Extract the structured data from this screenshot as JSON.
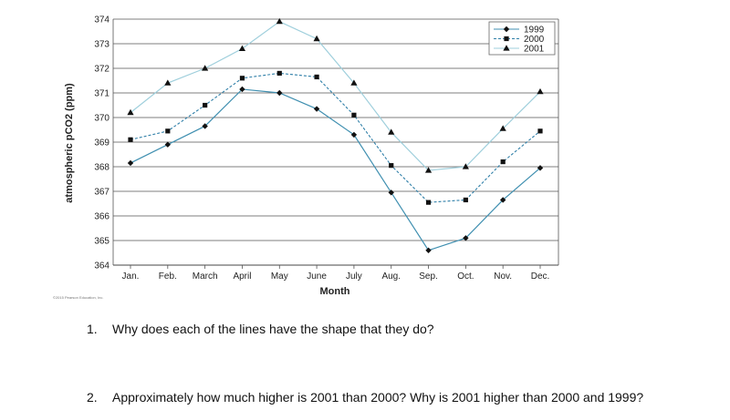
{
  "chart_data": {
    "type": "line",
    "title": "",
    "xlabel": "Month",
    "ylabel": "atmospheric pCO2 (ppm)",
    "categories": [
      "Jan.",
      "Feb.",
      "March",
      "April",
      "May",
      "June",
      "July",
      "Aug.",
      "Sep.",
      "Oct.",
      "Nov.",
      "Dec."
    ],
    "ylim": [
      364,
      374
    ],
    "yticks": [
      364,
      365,
      366,
      367,
      368,
      369,
      370,
      371,
      372,
      373,
      374
    ],
    "grid": true,
    "legend_position": "top-right",
    "series": [
      {
        "name": "1999",
        "marker": "diamond",
        "line_style": "solid",
        "color": "#3f8fb0",
        "values": [
          368.15,
          368.9,
          369.65,
          371.15,
          371.0,
          370.35,
          369.3,
          366.95,
          364.6,
          365.1,
          366.65,
          367.95
        ]
      },
      {
        "name": "2000",
        "marker": "square",
        "line_style": "dashed",
        "color": "#2f7fa8",
        "values": [
          369.1,
          369.45,
          370.5,
          371.6,
          371.8,
          371.65,
          370.1,
          368.05,
          366.55,
          366.65,
          368.2,
          369.45
        ]
      },
      {
        "name": "2001",
        "marker": "triangle",
        "line_style": "solid",
        "color": "#9fcfdc",
        "values": [
          370.2,
          371.4,
          372.0,
          372.8,
          373.9,
          373.2,
          371.4,
          369.4,
          367.85,
          368.0,
          369.55,
          371.05
        ]
      }
    ]
  },
  "copyright": "©2015 Pearson Education, Inc.",
  "questions": [
    {
      "number": "1.",
      "text": "Why does each of the lines have the shape that they do?"
    },
    {
      "number": "2.",
      "text": "Approximately how much higher is 2001 than 2000?  Why is 2001 higher than 2000 and 1999?"
    }
  ]
}
